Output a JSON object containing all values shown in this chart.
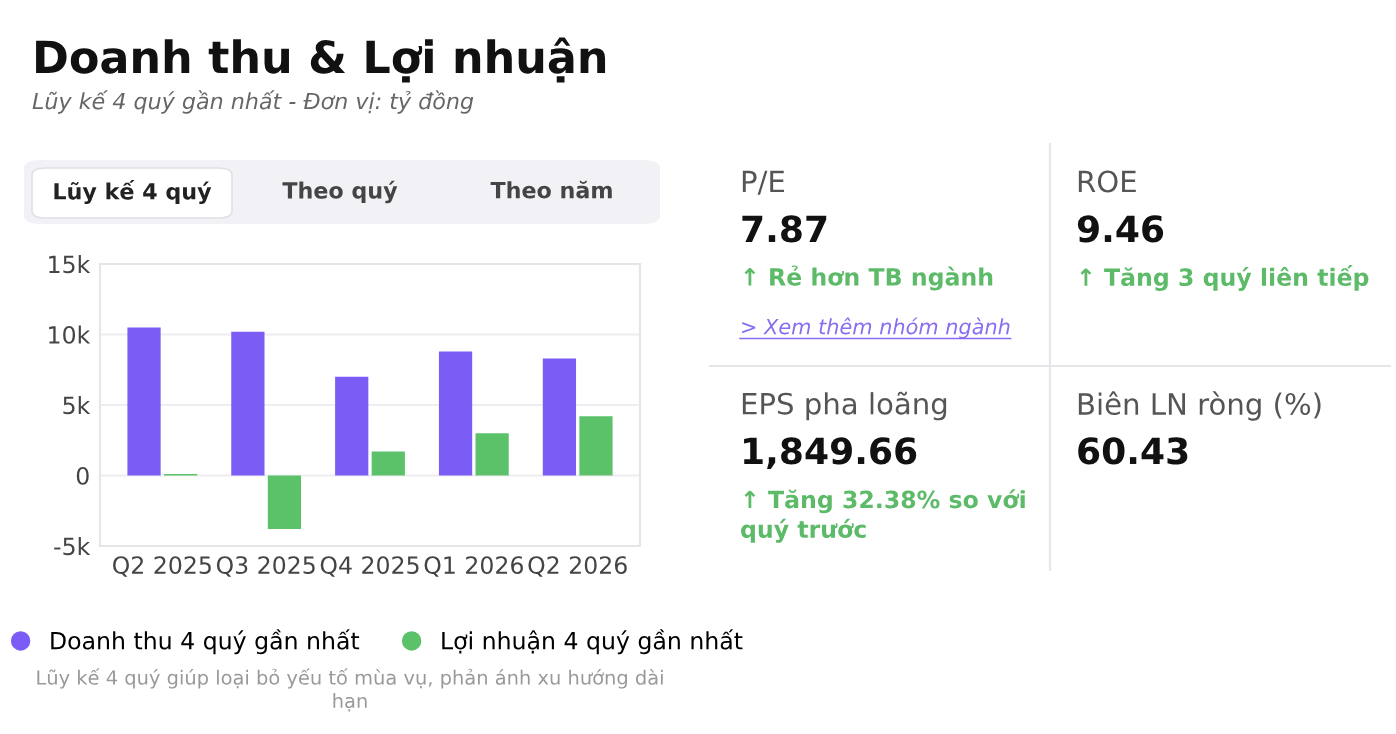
{
  "chart_data": [
    {
      "type": "bar",
      "title": "Doanh thu & Lợi nhuận",
      "subtitle": "Lũy kế 4 quý gần nhất - Đơn vị: tỷ đồng",
      "categories": [
        "Q2 2025",
        "Q3 2025",
        "Q4 2025",
        "Q1 2026",
        "Q2 2026"
      ],
      "series": [
        {
          "name": "Doanh thu 4 quý gần nhất",
          "color": "#7b5cf5",
          "values": [
            10500,
            10200,
            7000,
            8800,
            8300
          ]
        },
        {
          "name": "Lợi nhuận 4 quý gần nhất",
          "color": "#5cc26a",
          "values": [
            100,
            -3800,
            1700,
            3000,
            4200
          ]
        }
      ],
      "ylim": [
        -5000,
        15000
      ],
      "yticks": [
        {
          "value": -5000,
          "label": "-5k"
        },
        0,
        {
          "value": 5000,
          "label": "5k"
        },
        {
          "value": 10000,
          "label": "10k"
        },
        {
          "value": 15000,
          "label": "15k"
        }
      ],
      "grid": "y",
      "legend": "bottom",
      "annotations": [
        "Lũy kế 4 quý",
        "Theo quý",
        "Theo năm",
        "Lũy kế 4 quý giúp loại bỏ yếu tố mùa vụ, phản ánh xu hướng dài\nhạn"
      ]
    },
    {
      "type": "other",
      "annotations": [
        "P/E",
        "7.87",
        "↑ Rẻ hơn TB ngành",
        "> Xem thêm nhóm ngành",
        "ROE",
        "9.46",
        "↑ Tăng 3 quý liên tiếp",
        "EPS pha loãng",
        "1,849.66",
        "↑ Tăng 32.38% so với\nquý trước",
        "Biên LN ròng (%)",
        "60.43"
      ]
    }
  ]
}
